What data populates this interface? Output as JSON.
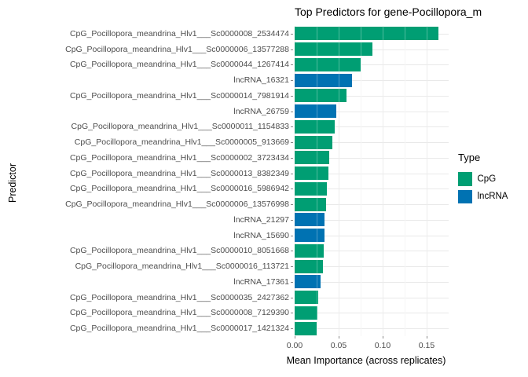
{
  "title": "Top Predictors for gene-Pocillopora_m",
  "axes": {
    "x_title": "Mean Importance (across replicates)",
    "y_title": "Predictor",
    "x_tick_labels": [
      "0.00",
      "0.05",
      "0.10",
      "0.15"
    ]
  },
  "legend": {
    "title": "Type",
    "items": [
      {
        "label": "CpG",
        "color": "#009E73"
      },
      {
        "label": "lncRNA",
        "color": "#0072B2"
      }
    ]
  },
  "chart_data": {
    "type": "bar",
    "orientation": "horizontal",
    "title": "Top Predictors for gene-Pocillopora_m",
    "xlabel": "Mean Importance (across replicates)",
    "ylabel": "Predictor",
    "xlim": [
      0,
      0.175
    ],
    "x_major_ticks": [
      0,
      0.05,
      0.1,
      0.15
    ],
    "x_minor_ticks": [
      0.025,
      0.075,
      0.125,
      0.175
    ],
    "grid": true,
    "legend_title": "Type",
    "legend_position": "right",
    "colors": {
      "CpG": "#009E73",
      "lncRNA": "#0072B2"
    },
    "bars": [
      {
        "label": "CpG_Pocillopora_meandrina_Hlv1___Sc0000008_2534474",
        "type": "CpG",
        "value": 0.163
      },
      {
        "label": "CpG_Pocillopora_meandrina_Hlv1___Sc0000006_13577288",
        "type": "CpG",
        "value": 0.088
      },
      {
        "label": "CpG_Pocillopora_meandrina_Hlv1___Sc0000044_1267414",
        "type": "CpG",
        "value": 0.075
      },
      {
        "label": "lncRNA_16321",
        "type": "lncRNA",
        "value": 0.065
      },
      {
        "label": "CpG_Pocillopora_meandrina_Hlv1___Sc0000014_7981914",
        "type": "CpG",
        "value": 0.059
      },
      {
        "label": "lncRNA_26759",
        "type": "lncRNA",
        "value": 0.047
      },
      {
        "label": "CpG_Pocillopora_meandrina_Hlv1___Sc0000011_1154833",
        "type": "CpG",
        "value": 0.0455
      },
      {
        "label": "CpG_Pocillopora_meandrina_Hlv1___Sc0000005_913669",
        "type": "CpG",
        "value": 0.0425
      },
      {
        "label": "CpG_Pocillopora_meandrina_Hlv1___Sc0000002_3723434",
        "type": "CpG",
        "value": 0.039
      },
      {
        "label": "CpG_Pocillopora_meandrina_Hlv1___Sc0000013_8382349",
        "type": "CpG",
        "value": 0.038
      },
      {
        "label": "CpG_Pocillopora_meandrina_Hlv1___Sc0000016_5986942",
        "type": "CpG",
        "value": 0.037
      },
      {
        "label": "CpG_Pocillopora_meandrina_Hlv1___Sc0000006_13576998",
        "type": "CpG",
        "value": 0.036
      },
      {
        "label": "lncRNA_21297",
        "type": "lncRNA",
        "value": 0.034
      },
      {
        "label": "lncRNA_15690",
        "type": "lncRNA",
        "value": 0.0335
      },
      {
        "label": "CpG_Pocillopora_meandrina_Hlv1___Sc0000010_8051668",
        "type": "CpG",
        "value": 0.033
      },
      {
        "label": "CpG_Pocillopora_meandrina_Hlv1___Sc0000016_113721",
        "type": "CpG",
        "value": 0.032
      },
      {
        "label": "lncRNA_17361",
        "type": "lncRNA",
        "value": 0.0293
      },
      {
        "label": "CpG_Pocillopora_meandrina_Hlv1___Sc0000035_2427362",
        "type": "CpG",
        "value": 0.0266
      },
      {
        "label": "CpG_Pocillopora_meandrina_Hlv1___Sc0000008_7129390",
        "type": "CpG",
        "value": 0.0259
      },
      {
        "label": "CpG_Pocillopora_meandrina_Hlv1___Sc0000017_1421324",
        "type": "CpG",
        "value": 0.0253
      }
    ]
  }
}
